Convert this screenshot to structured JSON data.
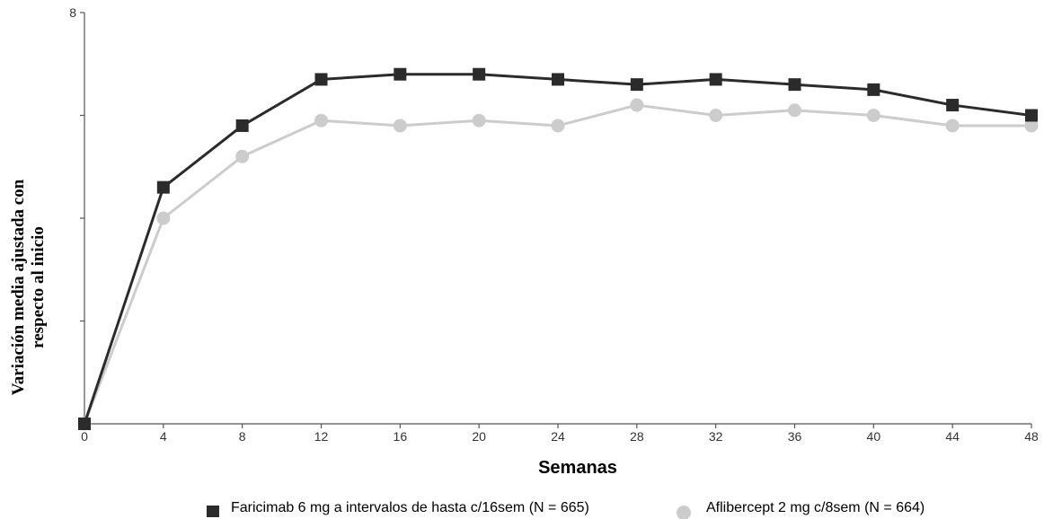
{
  "chart_data": {
    "type": "line",
    "title": "",
    "xlabel": "Semanas",
    "ylabel_lines": [
      "Variación media ajustada con",
      "respecto al inicio"
    ],
    "x": [
      0,
      4,
      8,
      12,
      16,
      20,
      24,
      28,
      32,
      36,
      40,
      44,
      48
    ],
    "xlim": [
      0,
      48
    ],
    "ylim": [
      0,
      8
    ],
    "y_tick_labels": [
      "8"
    ],
    "y_ticks": [
      0,
      2,
      4,
      6,
      8
    ],
    "grid": false,
    "legend_position": "bottom",
    "series": [
      {
        "name": "Faricimab 6 mg a intervalos de hasta c/16sem (N = 665)",
        "values": [
          0,
          4.6,
          5.8,
          6.7,
          6.8,
          6.8,
          6.7,
          6.6,
          6.7,
          6.6,
          6.5,
          6.2,
          6.0
        ],
        "color": "#2b2b2b",
        "marker": "square"
      },
      {
        "name": "Aflibercept 2 mg c/8sem (N = 664)",
        "values": [
          0,
          4.0,
          5.2,
          5.9,
          5.8,
          5.9,
          5.8,
          6.2,
          6.0,
          6.1,
          6.0,
          5.8,
          5.8
        ],
        "color": "#cccccc",
        "marker": "circle"
      }
    ]
  }
}
